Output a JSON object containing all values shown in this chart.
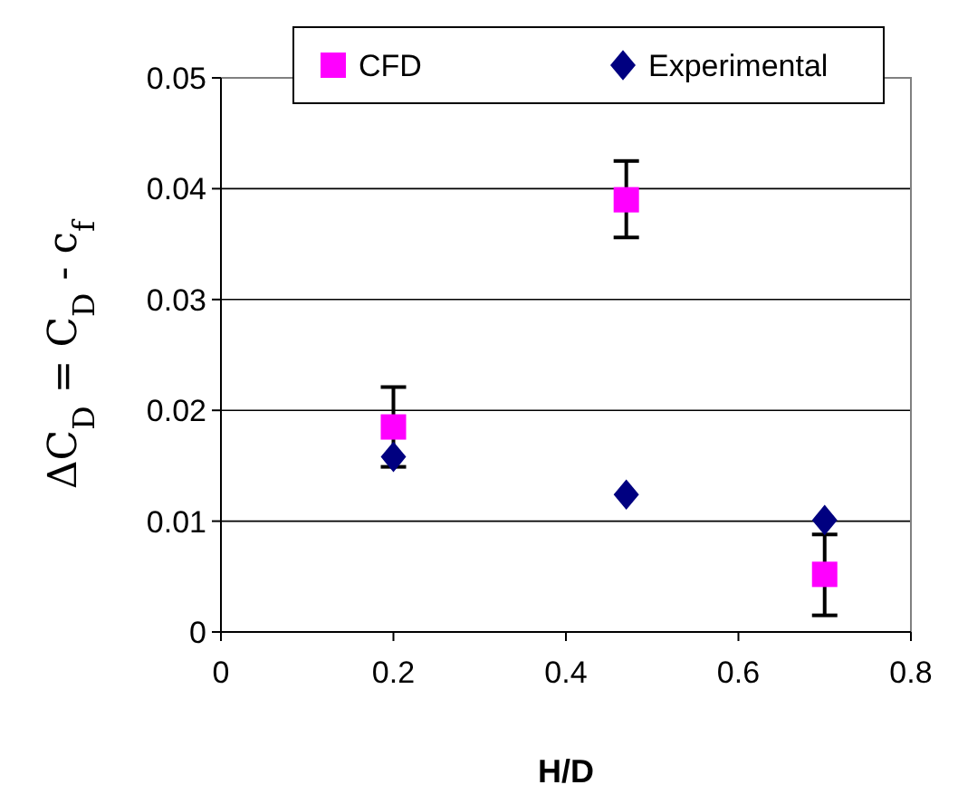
{
  "chart_data": {
    "type": "scatter",
    "xlabel": "H/D",
    "ylabel": "ΔC$_{D}$ = C$_{D}$ - c$_{f}$",
    "xlim": [
      0,
      0.8
    ],
    "xticks": [
      0,
      0.2,
      0.4,
      0.6,
      0.8
    ],
    "ylim": [
      0,
      0.05
    ],
    "yticks": [
      0,
      0.01,
      0.02,
      0.03,
      0.04,
      0.05
    ],
    "grid": "y",
    "legend": "top",
    "series": [
      {
        "name": "CFD",
        "color": "#ff00ff",
        "marker": "square",
        "x": [
          0.2,
          0.47,
          0.7
        ],
        "values": [
          0.0185,
          0.039,
          0.0052
        ],
        "errors": [
          [
            0.0149,
            0.0221
          ],
          [
            0.0356,
            0.0425
          ],
          [
            0.0015,
            0.0088
          ]
        ]
      },
      {
        "name": "Experimental",
        "color": "#000080",
        "marker": "diamond",
        "x": [
          0.2,
          0.47,
          0.7
        ],
        "values": [
          0.0158,
          0.0124,
          0.0101
        ]
      }
    ]
  }
}
